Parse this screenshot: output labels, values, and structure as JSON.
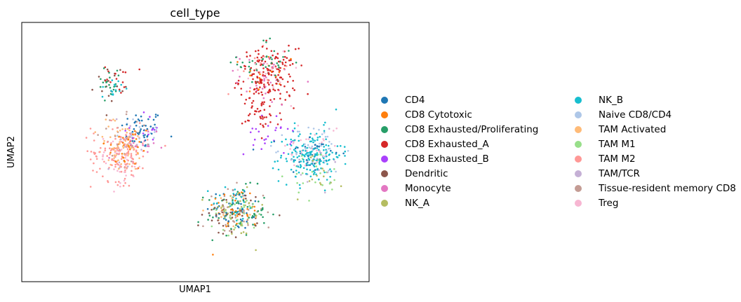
{
  "chart_data": {
    "type": "scatter",
    "title": "cell_type",
    "xlabel": "UMAP1",
    "ylabel": "UMAP2",
    "xlim": [
      -6,
      16
    ],
    "ylim": [
      -4,
      12
    ],
    "grid": false,
    "ticks": false,
    "legend_placement": "right",
    "series": [
      {
        "name": "CD4",
        "color": "#1f77b4",
        "clusters": [
          {
            "cx": 1.6,
            "cy": 5.4,
            "sx": 0.9,
            "sy": 0.8,
            "n": 45
          },
          {
            "cx": 7.5,
            "cy": 0.5,
            "sx": 1.2,
            "sy": 0.9,
            "n": 40
          },
          {
            "cx": 12.3,
            "cy": 3.8,
            "sx": 1.2,
            "sy": 1.0,
            "n": 35
          }
        ]
      },
      {
        "name": "CD8 Cytotoxic",
        "color": "#ff7f0e",
        "clusters": [
          {
            "cx": 0.8,
            "cy": 4.3,
            "sx": 1.0,
            "sy": 1.0,
            "n": 35
          },
          {
            "cx": 7.5,
            "cy": 0.5,
            "sx": 1.2,
            "sy": 0.9,
            "n": 30
          },
          {
            "cx": 9.7,
            "cy": 8.8,
            "sx": 1.1,
            "sy": 1.0,
            "n": 20
          }
        ]
      },
      {
        "name": "CD8 Exhausted/Proliferating",
        "color": "#279e68",
        "clusters": [
          {
            "cx": 7.6,
            "cy": 0.3,
            "sx": 1.3,
            "sy": 1.0,
            "n": 60
          },
          {
            "cx": 9.5,
            "cy": 9.5,
            "sx": 1.2,
            "sy": 1.0,
            "n": 40
          },
          {
            "cx": -0.4,
            "cy": 8.4,
            "sx": 0.6,
            "sy": 0.7,
            "n": 20
          }
        ]
      },
      {
        "name": "CD8 Exhausted_A",
        "color": "#d62728",
        "clusters": [
          {
            "cx": 9.6,
            "cy": 8.6,
            "sx": 1.2,
            "sy": 1.2,
            "n": 170
          },
          {
            "cx": 9.2,
            "cy": 6.3,
            "sx": 0.8,
            "sy": 0.7,
            "n": 35
          },
          {
            "cx": 0.1,
            "cy": 8.5,
            "sx": 0.6,
            "sy": 0.6,
            "n": 15
          }
        ]
      },
      {
        "name": "CD8 Exhausted_B",
        "color": "#aa40fc",
        "clusters": [
          {
            "cx": 9.6,
            "cy": 5.0,
            "sx": 1.0,
            "sy": 0.8,
            "n": 25
          },
          {
            "cx": 1.6,
            "cy": 5.4,
            "sx": 0.9,
            "sy": 0.7,
            "n": 12
          }
        ]
      },
      {
        "name": "Dendritic",
        "color": "#8c564b",
        "clusters": [
          {
            "cx": 7.4,
            "cy": 0.2,
            "sx": 1.3,
            "sy": 1.0,
            "n": 40
          },
          {
            "cx": -0.4,
            "cy": 8.3,
            "sx": 0.6,
            "sy": 0.7,
            "n": 15
          }
        ]
      },
      {
        "name": "Monocyte",
        "color": "#e377c2",
        "clusters": [
          {
            "cx": 9.5,
            "cy": 8.5,
            "sx": 1.2,
            "sy": 1.1,
            "n": 30
          },
          {
            "cx": 1.0,
            "cy": 4.2,
            "sx": 1.0,
            "sy": 0.9,
            "n": 20
          }
        ]
      },
      {
        "name": "NK_A",
        "color": "#b5bd61",
        "clusters": [
          {
            "cx": 7.6,
            "cy": 0.2,
            "sx": 1.2,
            "sy": 1.0,
            "n": 45
          },
          {
            "cx": 12.8,
            "cy": 2.5,
            "sx": 1.0,
            "sy": 0.9,
            "n": 15
          }
        ]
      },
      {
        "name": "NK_B",
        "color": "#17becf",
        "clusters": [
          {
            "cx": 12.3,
            "cy": 3.8,
            "sx": 1.3,
            "sy": 1.1,
            "n": 170
          },
          {
            "cx": 7.5,
            "cy": 0.8,
            "sx": 1.0,
            "sy": 0.8,
            "n": 25
          },
          {
            "cx": -0.2,
            "cy": 8.0,
            "sx": 0.5,
            "sy": 0.5,
            "n": 15
          }
        ]
      },
      {
        "name": "Naive CD8/CD4",
        "color": "#aec7e8",
        "clusters": [
          {
            "cx": 12.6,
            "cy": 4.2,
            "sx": 1.2,
            "sy": 1.0,
            "n": 40
          },
          {
            "cx": 1.6,
            "cy": 5.3,
            "sx": 0.9,
            "sy": 0.7,
            "n": 15
          }
        ]
      },
      {
        "name": "TAM Activated",
        "color": "#ffbb78",
        "clusters": [
          {
            "cx": 0.3,
            "cy": 4.3,
            "sx": 1.1,
            "sy": 1.1,
            "n": 60
          },
          {
            "cx": 7.5,
            "cy": 0.5,
            "sx": 1.1,
            "sy": 0.8,
            "n": 15
          }
        ]
      },
      {
        "name": "TAM M1",
        "color": "#98df8a",
        "clusters": [
          {
            "cx": 12.7,
            "cy": 2.6,
            "sx": 1.1,
            "sy": 1.0,
            "n": 25
          },
          {
            "cx": 7.6,
            "cy": 0.0,
            "sx": 1.2,
            "sy": 0.8,
            "n": 25
          }
        ]
      },
      {
        "name": "TAM M2",
        "color": "#ff9896",
        "clusters": [
          {
            "cx": 0.2,
            "cy": 4.0,
            "sx": 1.2,
            "sy": 1.2,
            "n": 130
          },
          {
            "cx": 9.5,
            "cy": 9.0,
            "sx": 1.0,
            "sy": 0.9,
            "n": 15
          }
        ]
      },
      {
        "name": "TAM/TCR",
        "color": "#c5b0d5",
        "clusters": [
          {
            "cx": 12.5,
            "cy": 3.5,
            "sx": 1.2,
            "sy": 1.0,
            "n": 20
          },
          {
            "cx": 0.8,
            "cy": 4.6,
            "sx": 1.0,
            "sy": 0.9,
            "n": 15
          }
        ]
      },
      {
        "name": "Tissue-resident memory CD8",
        "color": "#c49c94",
        "clusters": [
          {
            "cx": 7.4,
            "cy": 0.3,
            "sx": 1.3,
            "sy": 1.0,
            "n": 40
          },
          {
            "cx": 0.5,
            "cy": 4.6,
            "sx": 1.0,
            "sy": 1.0,
            "n": 30
          }
        ]
      },
      {
        "name": "Treg",
        "color": "#f7b6d2",
        "clusters": [
          {
            "cx": 0.2,
            "cy": 3.5,
            "sx": 1.1,
            "sy": 1.1,
            "n": 40
          },
          {
            "cx": 12.5,
            "cy": 4.5,
            "sx": 1.2,
            "sy": 1.0,
            "n": 30
          },
          {
            "cx": 9.5,
            "cy": 9.0,
            "sx": 1.0,
            "sy": 1.0,
            "n": 20
          }
        ]
      }
    ]
  }
}
